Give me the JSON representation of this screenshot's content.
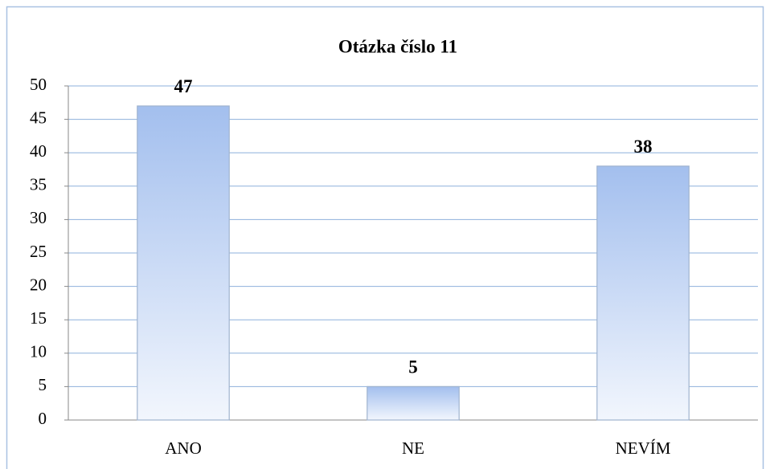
{
  "chart_data": {
    "type": "bar",
    "title": "Otázka číslo 11",
    "categories": [
      "ANO",
      "NE",
      "NEVÍM"
    ],
    "values": [
      47,
      5,
      38
    ],
    "color": "#a3bfee",
    "ylim": [
      0,
      50
    ],
    "yticks": [
      0,
      5,
      10,
      15,
      20,
      25,
      30,
      35,
      40,
      45,
      50
    ],
    "grid": true
  }
}
